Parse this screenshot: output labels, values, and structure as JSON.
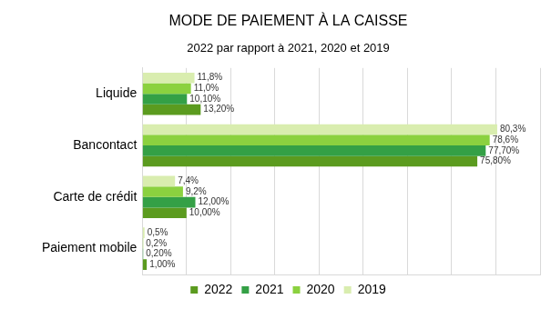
{
  "chart_data": {
    "type": "bar",
    "orientation": "horizontal",
    "title": "MODE DE PAIEMENT À LA CAISSE",
    "subtitle": "2022 par rapport à 2021, 2020 et 2019",
    "categories": [
      "Liquide",
      "Bancontact",
      "Carte de crédit",
      "Paiement mobile"
    ],
    "series": [
      {
        "name": "2019",
        "color": "#d9edaf",
        "values": [
          11.8,
          80.3,
          7.4,
          0.5
        ],
        "value_labels": [
          "11,8%",
          "80,3%",
          "7,4%",
          "0,5%"
        ]
      },
      {
        "name": "2020",
        "color": "#8bd13f",
        "values": [
          11.0,
          78.6,
          9.2,
          0.2
        ],
        "value_labels": [
          "11,0%",
          "78,6%",
          "9,2%",
          "0,2%"
        ]
      },
      {
        "name": "2021",
        "color": "#34a046",
        "values": [
          10.1,
          77.7,
          12.0,
          0.2
        ],
        "value_labels": [
          "10,10%",
          "77,70%",
          "12,00%",
          "0,20%"
        ]
      },
      {
        "name": "2022",
        "color": "#5b9b1f",
        "values": [
          13.2,
          75.8,
          10.0,
          1.0
        ],
        "value_labels": [
          "13,20%",
          "75,80%",
          "10,00%",
          "1,00%"
        ]
      }
    ],
    "xlim": [
      0,
      90
    ],
    "xticks": [
      0,
      10,
      20,
      30,
      40,
      50,
      60,
      70,
      80,
      90
    ],
    "grid": true,
    "legend": "bottom",
    "data_labels": true,
    "tick_labels": "y"
  }
}
